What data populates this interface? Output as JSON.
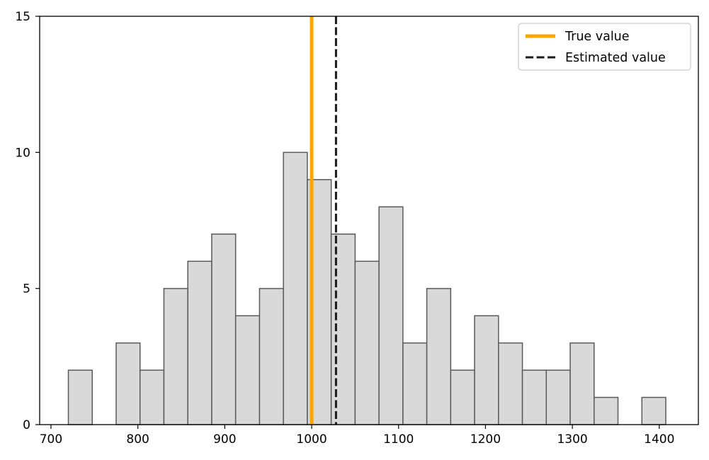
{
  "chart_data": {
    "type": "bar",
    "title": "",
    "xlabel": "",
    "ylabel": "",
    "xlim": [
      687,
      1445
    ],
    "ylim": [
      0,
      15
    ],
    "xticks": [
      700,
      800,
      900,
      1000,
      1100,
      1200,
      1300,
      1400
    ],
    "yticks": [
      0,
      5,
      10,
      15
    ],
    "grid": false,
    "legend_position": "top-right",
    "colors": {
      "bar_fill": "#d9d9d9",
      "bar_edge": "#5a5a5a",
      "true_line": "#ffa500",
      "estimated_line": "#1a1a1a"
    },
    "bin_edges": [
      720,
      747.5,
      775,
      802.5,
      830,
      857.5,
      885,
      912.5,
      940,
      967.5,
      995,
      1022.5,
      1050,
      1077.5,
      1105,
      1132.5,
      1160,
      1187.5,
      1215,
      1242.5,
      1270,
      1297.5,
      1325,
      1352.5,
      1380,
      1407.5
    ],
    "counts": [
      2,
      0,
      3,
      2,
      5,
      6,
      7,
      4,
      5,
      10,
      9,
      7,
      6,
      8,
      3,
      5,
      2,
      4,
      3,
      2,
      2,
      3,
      1,
      0,
      1
    ],
    "reference_lines": [
      {
        "name": "True value",
        "x": 1000,
        "style": "solid",
        "color": "#ffa500"
      },
      {
        "name": "Estimated value",
        "x": 1028,
        "style": "dashed",
        "color": "#1a1a1a"
      }
    ]
  }
}
